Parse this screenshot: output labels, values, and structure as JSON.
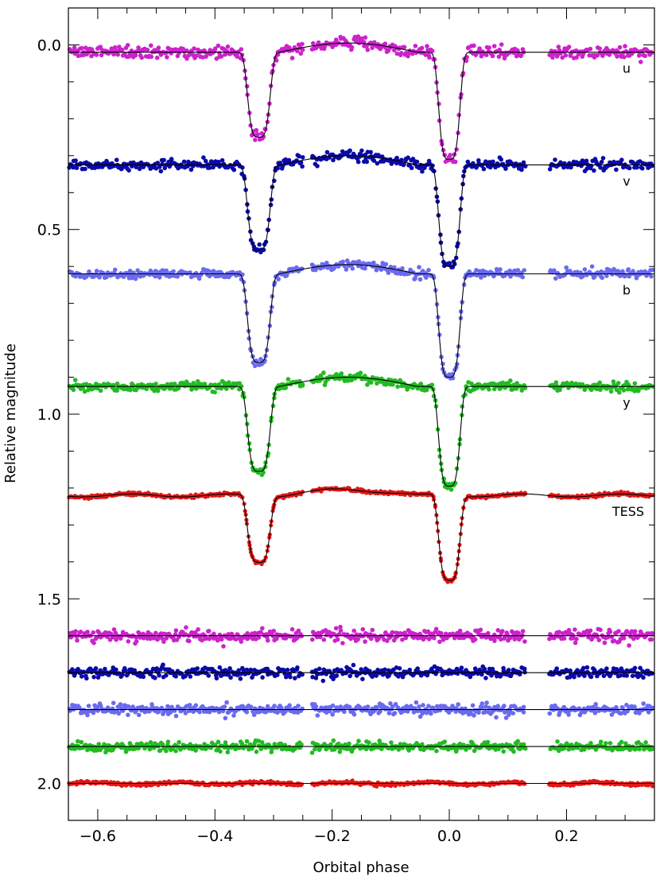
{
  "chart_data": {
    "type": "scatter",
    "title": "",
    "xlabel": "Orbital phase",
    "ylabel": "Relative magnitude",
    "xlim": [
      -0.65,
      0.35
    ],
    "ylim": [
      2.1,
      -0.1
    ],
    "y_inverted": true,
    "xticks": [
      -0.6,
      -0.4,
      -0.2,
      0.0,
      0.2
    ],
    "xtick_labels": [
      "−0.6",
      "−0.4",
      "−0.2",
      "0.0",
      "0.2"
    ],
    "yticks": [
      0.0,
      0.5,
      1.0,
      1.5,
      2.0
    ],
    "ytick_labels": [
      "0.0",
      "0.5",
      "1.0",
      "1.5",
      "2.0"
    ],
    "x_minor_step": 0.05,
    "y_minor_step": 0.1,
    "grid": false,
    "gaps": [
      [
        -0.25,
        -0.235
      ],
      [
        0.13,
        0.17
      ]
    ],
    "colors": {
      "u": "#cc22cc",
      "v": "#0a0aa8",
      "b": "#6a6af0",
      "y": "#22bb22",
      "TESS": "#e01818",
      "model": "#000000"
    },
    "light_curves": [
      {
        "name": "u",
        "offset": 0.02,
        "primary_depth": 0.29,
        "secondary_depth": 0.23,
        "reflection": 0.025,
        "noise": 0.008
      },
      {
        "name": "v",
        "offset": 0.325,
        "primary_depth": 0.275,
        "secondary_depth": 0.23,
        "reflection": 0.025,
        "noise": 0.007
      },
      {
        "name": "b",
        "offset": 0.62,
        "primary_depth": 0.28,
        "secondary_depth": 0.24,
        "reflection": 0.025,
        "noise": 0.006
      },
      {
        "name": "y",
        "offset": 0.925,
        "primary_depth": 0.27,
        "secondary_depth": 0.23,
        "reflection": 0.025,
        "noise": 0.006
      },
      {
        "name": "TESS",
        "offset": 1.22,
        "primary_depth": 0.23,
        "secondary_depth": 0.18,
        "reflection": 0.015,
        "noise": 0.002
      }
    ],
    "residuals": [
      {
        "name": "u",
        "baseline": 1.6,
        "noise": 0.008
      },
      {
        "name": "v",
        "baseline": 1.7,
        "noise": 0.007
      },
      {
        "name": "b",
        "baseline": 1.8,
        "noise": 0.007
      },
      {
        "name": "y",
        "baseline": 1.9,
        "noise": 0.006
      },
      {
        "name": "TESS",
        "baseline": 2.0,
        "noise": 0.002
      }
    ]
  }
}
